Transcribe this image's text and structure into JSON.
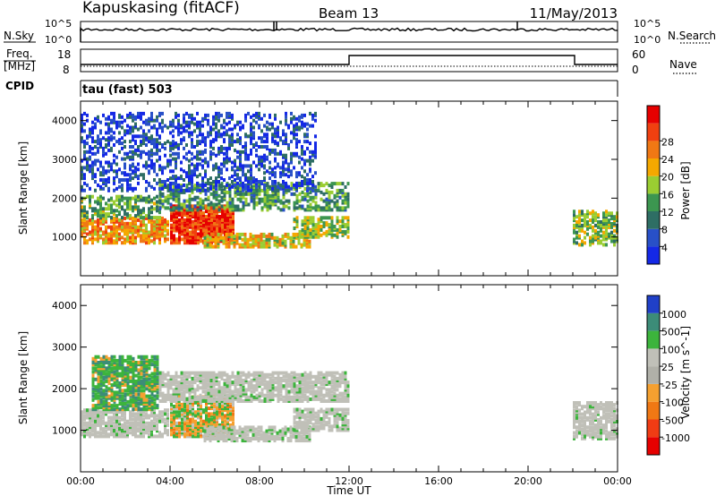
{
  "header": {
    "station": "Kapuskasing (fitACF)",
    "beam": "Beam 13",
    "date": "11/May/2013"
  },
  "panel_labels": {
    "nsky": "N.Sky",
    "freq": "Freq.",
    "freq_unit": "[MHz]",
    "cpid": "CPID",
    "cpid_value": "tau (fast) 503",
    "nsearch": "N.Search",
    "nave": "Nave",
    "ten5": "10^5",
    "ten0": "10^0",
    "f18": "18",
    "f8": "8",
    "n60": "60",
    "n0": "0"
  },
  "colors": {
    "power_scale": [
      "#1428e6",
      "#2850c8",
      "#2e6e64",
      "#3c9650",
      "#9acd32",
      "#f5a800",
      "#f07814",
      "#f04010",
      "#e60000"
    ],
    "velocity_scale": [
      "#2040c8",
      "#3c8c78",
      "#3cb43c",
      "#c0c0b8",
      "#b0b0a8",
      "#f5a030",
      "#f07814",
      "#f03c14",
      "#e60000"
    ]
  },
  "chart_data": [
    {
      "type": "heatmap",
      "title": "",
      "xlabel": "Time UT",
      "ylabel": "Slant Range [km]",
      "x_ticks": [
        "00:00",
        "04:00",
        "08:00",
        "12:00",
        "16:00",
        "20:00",
        "00:00"
      ],
      "y_ticks": [
        "1000",
        "2000",
        "3000",
        "4000"
      ],
      "colorbar": {
        "label": "Power [dB]",
        "ticks": [
          "4",
          "8",
          "12",
          "16",
          "20",
          "24",
          "28"
        ],
        "range": [
          0,
          30
        ]
      },
      "regions": [
        {
          "t0": 0.0,
          "t1": 3.9,
          "r0": 850,
          "r1": 1500,
          "level": 0.7
        },
        {
          "t0": 0.0,
          "t1": 3.5,
          "r0": 1500,
          "r1": 2050,
          "level": 0.4
        },
        {
          "t0": 4.0,
          "t1": 6.8,
          "r0": 850,
          "r1": 1800,
          "level": 0.9
        },
        {
          "t0": 5.5,
          "t1": 10.2,
          "r0": 750,
          "r1": 1100,
          "level": 0.6
        },
        {
          "t0": 3.5,
          "t1": 12.0,
          "r0": 1700,
          "r1": 2400,
          "level": 0.35
        },
        {
          "t0": 9.5,
          "t1": 12.0,
          "r0": 1000,
          "r1": 1500,
          "level": 0.5
        },
        {
          "t0": 22.0,
          "t1": 24.0,
          "r0": 800,
          "r1": 1700,
          "level": 0.45
        },
        {
          "t0": 0.0,
          "t1": 10.5,
          "r0": 2200,
          "r1": 4200,
          "level": 0.1
        }
      ]
    },
    {
      "type": "heatmap",
      "title": "",
      "xlabel": "Time UT",
      "ylabel": "Slant Range [km]",
      "x_ticks": [
        "00:00",
        "04:00",
        "08:00",
        "12:00",
        "16:00",
        "20:00",
        "00:00"
      ],
      "y_ticks": [
        "1000",
        "2000",
        "3000",
        "4000"
      ],
      "colorbar": {
        "label": "Velocity [m s^-1]",
        "ticks": [
          "1000",
          "500",
          "100",
          "25",
          "-25",
          "-100",
          "-500",
          "-1000"
        ],
        "range": [
          -1000,
          1000
        ]
      },
      "regions": [
        {
          "t0": 0.0,
          "t1": 3.9,
          "r0": 850,
          "r1": 1500,
          "kind": "ground"
        },
        {
          "t0": 4.0,
          "t1": 6.8,
          "r0": 850,
          "r1": 1800,
          "kind": "mixed"
        },
        {
          "t0": 5.5,
          "t1": 10.2,
          "r0": 750,
          "r1": 1100,
          "kind": "ground"
        },
        {
          "t0": 3.5,
          "t1": 12.0,
          "r0": 1700,
          "r1": 2400,
          "kind": "ground"
        },
        {
          "t0": 9.5,
          "t1": 12.0,
          "r0": 1000,
          "r1": 1500,
          "kind": "ground"
        },
        {
          "t0": 22.0,
          "t1": 24.0,
          "r0": 800,
          "r1": 1700,
          "kind": "ground"
        },
        {
          "t0": 0.5,
          "t1": 3.5,
          "r0": 1500,
          "r1": 2800,
          "kind": "ionos"
        }
      ]
    }
  ]
}
